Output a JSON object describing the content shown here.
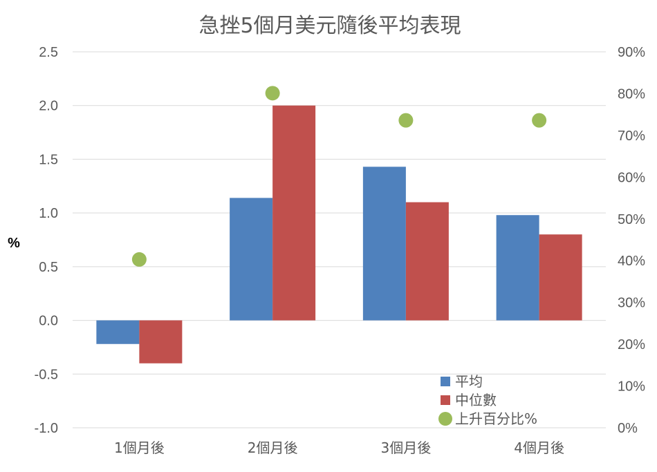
{
  "chart_data": {
    "type": "bar",
    "title": "急挫5個月美元隨後平均表現",
    "ylabel": "%",
    "categories": [
      "1個月後",
      "2個月後",
      "3個月後",
      "4個月後"
    ],
    "ylim": [
      -1.0,
      2.5
    ],
    "yticks": [
      "2.5",
      "2.0",
      "1.5",
      "1.0",
      "0.5",
      "0.0",
      "-0.5",
      "-1.0"
    ],
    "y2lim": [
      0,
      90
    ],
    "y2ticks": [
      "90%",
      "80%",
      "70%",
      "60%",
      "50%",
      "40%",
      "30%",
      "20%",
      "10%",
      "0%"
    ],
    "grid": true,
    "legend_position": "bottom-right",
    "series": [
      {
        "name": "平均",
        "type": "bar",
        "axis": "left",
        "color": "#4f81bd",
        "values": [
          -0.22,
          1.14,
          1.43,
          0.98
        ]
      },
      {
        "name": "中位數",
        "type": "bar",
        "axis": "right-none",
        "color": "#c0504d",
        "values": [
          -0.4,
          2.0,
          1.1,
          0.8
        ]
      },
      {
        "name": "上升百分比%",
        "type": "scatter",
        "axis": "right",
        "color": "#9bbb59",
        "values": [
          40.3,
          80.1,
          73.6,
          73.6
        ]
      }
    ]
  }
}
